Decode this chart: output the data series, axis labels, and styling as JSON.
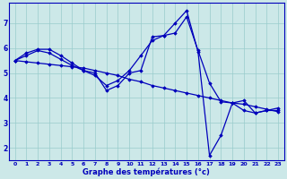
{
  "title": "Graphe des températures (°c)",
  "bg_color": "#cce8e8",
  "line_color": "#0000bb",
  "grid_color": "#99cccc",
  "x_ticks": [
    0,
    1,
    2,
    3,
    4,
    5,
    6,
    7,
    8,
    9,
    10,
    11,
    12,
    13,
    14,
    15,
    16,
    17,
    18,
    19,
    20,
    21,
    22,
    23
  ],
  "ylim": [
    1.5,
    7.8
  ],
  "yticks": [
    2,
    3,
    4,
    5,
    6,
    7
  ],
  "series1_x": [
    0,
    1,
    2,
    3,
    4,
    5,
    6,
    7,
    8,
    9,
    10,
    11,
    12,
    13,
    14,
    15,
    16,
    17,
    18,
    19,
    20,
    21,
    22,
    23
  ],
  "series1_y": [
    5.5,
    5.45,
    5.4,
    5.35,
    5.3,
    5.25,
    5.2,
    5.1,
    5.0,
    4.9,
    4.75,
    4.65,
    4.5,
    4.4,
    4.3,
    4.2,
    4.1,
    4.0,
    3.9,
    3.8,
    3.75,
    3.65,
    3.55,
    3.45
  ],
  "series2_x": [
    0,
    1,
    2,
    3,
    4,
    5,
    6,
    7,
    8,
    9,
    10,
    11,
    12,
    13,
    14,
    15,
    16,
    17,
    18,
    19,
    20,
    21,
    22,
    23
  ],
  "series2_y": [
    5.5,
    5.8,
    5.95,
    5.95,
    5.7,
    5.4,
    5.1,
    5.0,
    4.3,
    4.5,
    5.0,
    5.1,
    6.45,
    6.5,
    6.6,
    7.25,
    5.9,
    4.6,
    3.85,
    3.8,
    3.5,
    3.4,
    3.5,
    3.5
  ],
  "series3_x": [
    0,
    1,
    2,
    3,
    4,
    5,
    6,
    7,
    8,
    9,
    10,
    11,
    12,
    13,
    14,
    15,
    16,
    17,
    18,
    19,
    20,
    21,
    22,
    23
  ],
  "series3_y": [
    5.5,
    5.7,
    5.9,
    5.8,
    5.55,
    5.3,
    5.1,
    4.9,
    4.5,
    4.7,
    5.1,
    5.7,
    6.3,
    6.5,
    7.0,
    7.5,
    5.85,
    1.7,
    2.5,
    3.8,
    3.9,
    3.4,
    3.5,
    3.6
  ]
}
